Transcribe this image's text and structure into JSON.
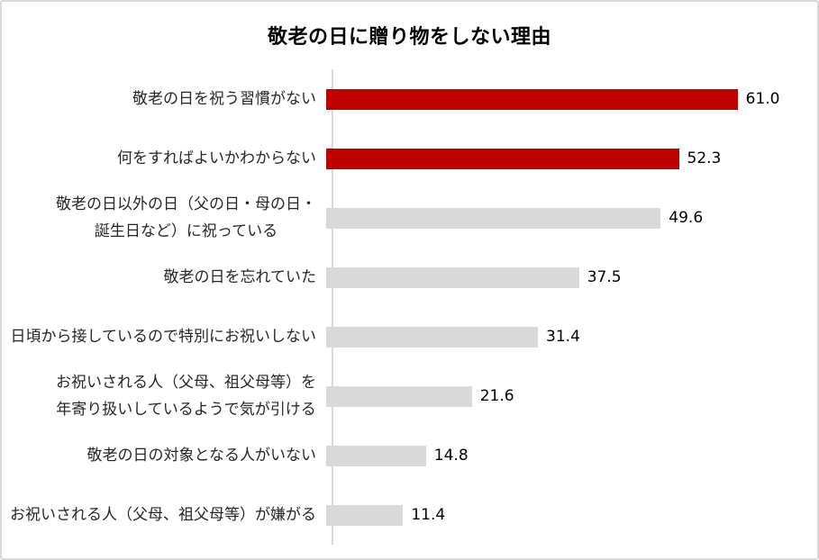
{
  "chart_data": {
    "type": "bar",
    "orientation": "horizontal",
    "title": "敬老の日に贈り物をしない理由",
    "categories": [
      "敬老の日を祝う習慣がない",
      "何をすればよいかわからない",
      "敬老の日以外の日（父の日・母の日・\n誕生日など）に祝っている",
      "敬老の日を忘れていた",
      "日頃から接しているので特別にお祝いしない",
      "お祝いされる人（父母、祖父母等）を\n年寄り扱いしているようで気が引ける",
      "敬老の日の対象となる人がいない",
      "お祝いされる人（父母、祖父母等）が嫌がる"
    ],
    "values": [
      61.0,
      52.3,
      49.6,
      37.5,
      31.4,
      21.6,
      14.8,
      11.4
    ],
    "value_labels": [
      "61.0",
      "52.3",
      "49.6",
      "37.5",
      "31.4",
      "21.6",
      "14.8",
      "11.4"
    ],
    "bar_colors": [
      "#C00000",
      "#C00000",
      "#D9D9D9",
      "#D9D9D9",
      "#D9D9D9",
      "#D9D9D9",
      "#D9D9D9",
      "#D9D9D9"
    ],
    "highlight_color": "#C00000",
    "default_color": "#D9D9D9",
    "axis_color": "#D9D9D9",
    "xlim": [
      0,
      70
    ],
    "grid": false,
    "legend": "none",
    "xlabel": "",
    "ylabel": ""
  }
}
